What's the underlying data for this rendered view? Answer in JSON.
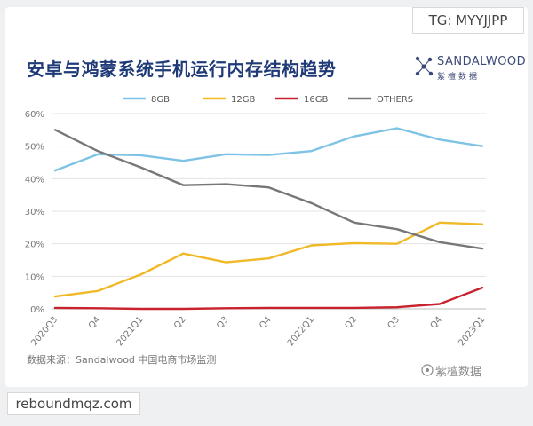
{
  "watermark_top": "TG: MYYJJPP",
  "watermark_bottom": "reboundmqz.com",
  "logo": {
    "name": "SANDALWOOD",
    "subtitle": "紫檀数据"
  },
  "source": "数据来源：Sandalwood 中国电商市场监测",
  "footer_brand": "紫檀数据",
  "chart_data": {
    "type": "line",
    "title": "安卓与鸿蒙系统手机运行内存结构趋势",
    "xlabel": "",
    "ylabel": "",
    "x": [
      "2020Q3",
      "Q4",
      "2021Q1",
      "Q2",
      "Q3",
      "Q4",
      "2022Q1",
      "Q2",
      "Q3",
      "Q4",
      "2023Q1"
    ],
    "ylim": [
      0,
      60
    ],
    "yticks": [
      0,
      10,
      20,
      30,
      40,
      50,
      60
    ],
    "ytick_labels": [
      "0%",
      "10%",
      "20%",
      "30%",
      "40%",
      "50%",
      "60%"
    ],
    "grid": true,
    "legend_position": "top",
    "series": [
      {
        "name": "8GB",
        "color": "#7ec3e6",
        "values": [
          42.5,
          47.5,
          47.2,
          45.5,
          47.5,
          47.3,
          48.5,
          53.0,
          55.5,
          52.0,
          50.0
        ]
      },
      {
        "name": "12GB",
        "color": "#f0b928",
        "values": [
          3.8,
          5.5,
          10.5,
          17.0,
          14.3,
          15.5,
          19.5,
          20.2,
          20.0,
          26.5,
          26.0
        ]
      },
      {
        "name": "16GB",
        "color": "#c8232c",
        "values": [
          0.3,
          0.2,
          0.0,
          0.0,
          0.2,
          0.3,
          0.3,
          0.3,
          0.5,
          1.5,
          6.5
        ]
      },
      {
        "name": "OTHERS",
        "color": "#777777",
        "values": [
          55.0,
          48.5,
          43.5,
          38.0,
          38.3,
          37.3,
          32.5,
          26.5,
          24.5,
          20.5,
          18.5
        ]
      }
    ]
  }
}
